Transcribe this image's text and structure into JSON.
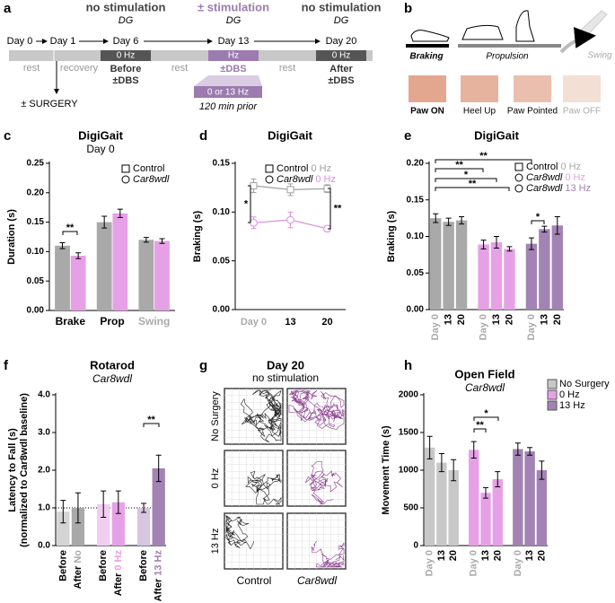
{
  "timeline": {
    "letter": "a",
    "headers": [
      {
        "title": "no stimulation",
        "sub": "DG"
      },
      {
        "title": "± stimulation",
        "sub": "DG"
      },
      {
        "title": "no stimulation",
        "sub": "DG"
      }
    ],
    "days": [
      "Day 0",
      "Day 1",
      "Day 6",
      "Day 13",
      "Day 20"
    ],
    "segments": [
      "rest",
      "recovery",
      "rest",
      "rest"
    ],
    "boxes": [
      "0 Hz",
      "Hz",
      "0 Hz"
    ],
    "box_labels": [
      [
        "Before",
        "±DBS"
      ],
      [
        "±DBS"
      ],
      [
        "After",
        "±DBS"
      ]
    ],
    "surgery": "± SURGERY",
    "prior_box": "0 or 13 Hz",
    "prior_note": "120 min prior"
  },
  "paw_phases": {
    "letter": "b",
    "phases": [
      "Braking",
      "Propulsion",
      "Swing"
    ],
    "stills": [
      "Paw ON",
      "Heel Up",
      "Paw Pointed",
      "Paw OFF"
    ]
  },
  "open_field": {
    "letter": "g",
    "title": "Day 20",
    "subtitle": "no stimulation",
    "rows": [
      "No Surgery",
      "0 Hz",
      "13 Hz"
    ],
    "columns": [
      "Control",
      "Car8wdl"
    ]
  },
  "chart_data": [
    {
      "type": "bar",
      "letter": "c",
      "title": "DigiGait",
      "subtitle": "Day 0",
      "ylabel": "Duration (s)",
      "categories": [
        "Brake",
        "Prop",
        "Swing"
      ],
      "category_colors": [
        "#000000",
        "#000000",
        "#aaaaaa"
      ],
      "series": [
        {
          "name": "Control",
          "marker": "square",
          "color": "#a9a9a9",
          "values": [
            0.11,
            0.15,
            0.12
          ],
          "errors": [
            0.005,
            0.01,
            0.004
          ]
        },
        {
          "name": "Car8wdl",
          "marker": "circle",
          "color": "#e6a1e6",
          "values": [
            0.093,
            0.165,
            0.118
          ],
          "errors": [
            0.005,
            0.007,
            0.004
          ]
        }
      ],
      "ylim": [
        0,
        0.25
      ],
      "yticks": [
        {
          "value": 0,
          "label": "0.00"
        },
        {
          "value": 0.05,
          "label": "0.05"
        },
        {
          "value": 0.1,
          "label": "0.10"
        },
        {
          "value": 0.15,
          "label": "0.15"
        },
        {
          "value": 0.2,
          "label": "0.20"
        },
        {
          "value": 0.25,
          "label": "0.25"
        }
      ],
      "legend": "upper right",
      "annotations": [
        "**"
      ]
    },
    {
      "type": "line",
      "letter": "d",
      "title": "DigiGait",
      "ylabel": "Braking (s)",
      "categories": [
        "Day 0",
        "13",
        "20"
      ],
      "category_colors": [
        "#aaaaaa",
        "#000000",
        "#000000"
      ],
      "series": [
        {
          "name": "Control",
          "condition": "0 Hz",
          "marker": "square",
          "color": "#a0a0a0",
          "values": [
            0.127,
            0.123,
            0.124
          ],
          "errors": [
            0.007,
            0.006,
            0.004
          ]
        },
        {
          "name": "Car8wdl",
          "condition": "0 Hz",
          "marker": "circle",
          "color": "#d98ee0",
          "values": [
            0.089,
            0.092,
            0.083
          ],
          "errors": [
            0.006,
            0.008,
            0.003
          ]
        }
      ],
      "ylim": [
        0,
        0.15
      ],
      "yticks": [
        {
          "value": 0,
          "label": "0.00"
        },
        {
          "value": 0.05,
          "label": "0.05"
        },
        {
          "value": 0.1,
          "label": "0.10"
        },
        {
          "value": 0.15,
          "label": "0.15"
        }
      ],
      "legend": "upper right",
      "annotations": [
        "*",
        "**"
      ]
    },
    {
      "type": "grouped_bar",
      "letter": "e",
      "title": "DigiGait",
      "ylabel": "Braking (s)",
      "categories": [
        "Day 0",
        "13",
        "20"
      ],
      "category_colors": [
        "#aaaaaa",
        "#000000",
        "#000000"
      ],
      "series": [
        {
          "name": "Control",
          "condition": "0 Hz",
          "marker": "square",
          "color": "#a9a9a9",
          "values": [
            0.125,
            0.12,
            0.122
          ],
          "errors": [
            0.006,
            0.005,
            0.005
          ]
        },
        {
          "name": "Car8wdl",
          "condition": "0 Hz",
          "marker": "circle",
          "color": "#e6a1e6",
          "values": [
            0.089,
            0.092,
            0.083
          ],
          "errors": [
            0.006,
            0.008,
            0.003
          ]
        },
        {
          "name": "Car8wdl",
          "condition": "13 Hz",
          "marker": "circle",
          "color": "#a283b4",
          "values": [
            0.09,
            0.11,
            0.115
          ],
          "errors": [
            0.008,
            0.004,
            0.012
          ]
        }
      ],
      "ylim": [
        0,
        0.2
      ],
      "yticks": [
        {
          "value": 0,
          "label": "0.00"
        },
        {
          "value": 0.05,
          "label": "0.05"
        },
        {
          "value": 0.1,
          "label": "0.10"
        },
        {
          "value": 0.15,
          "label": "0.15"
        },
        {
          "value": 0.2,
          "label": "0.20"
        }
      ],
      "legend": "upper right",
      "annotations": [
        "**",
        "**",
        "*",
        "**",
        "*"
      ]
    },
    {
      "type": "grouped_bar",
      "letter": "f",
      "title": "Rotarod",
      "subtitle": "Car8wdl",
      "ylabel": [
        "Latency to Fall (s)",
        "(normalized to Car8wdl baseline)"
      ],
      "categories": [
        "Before",
        "After"
      ],
      "category_colors": [
        "#000000",
        "#000000"
      ],
      "series_name_in_last_label": true,
      "series": [
        {
          "name": "No",
          "colors": [
            "#d4d4d4",
            "#a9a9a9"
          ],
          "color": "#a9a9a9",
          "values": [
            0.9,
            1.0
          ],
          "errors": [
            0.3,
            0.4
          ]
        },
        {
          "name": "0 Hz",
          "colors": [
            "#f2cdf2",
            "#e6a1e6"
          ],
          "color": "#e6a1e6",
          "values": [
            1.1,
            1.15
          ],
          "errors": [
            0.35,
            0.3
          ]
        },
        {
          "name": "13 Hz",
          "colors": [
            "#d6c6df",
            "#a283b4"
          ],
          "color": "#a283b4",
          "values": [
            1.0,
            2.05
          ],
          "errors": [
            0.12,
            0.35
          ]
        }
      ],
      "ylim": [
        0,
        4
      ],
      "yticks": [
        {
          "value": 0,
          "label": "0.0"
        },
        {
          "value": 1,
          "label": "1.0"
        },
        {
          "value": 2,
          "label": "2.0"
        },
        {
          "value": 3,
          "label": "3.0"
        },
        {
          "value": 4,
          "label": "4.0"
        }
      ],
      "reference_line": 1,
      "annotations": [
        "**"
      ]
    },
    {
      "type": "grouped_bar",
      "letter": "h",
      "title": "Open Field",
      "subtitle": "Car8wdl",
      "ylabel": "Movement Time (s)",
      "categories": [
        "Day 0",
        "13",
        "20"
      ],
      "category_colors": [
        "#aaaaaa",
        "#000000",
        "#000000"
      ],
      "series": [
        {
          "name": "No Surgery",
          "color": "#c8c8c8",
          "values": [
            1300,
            1100,
            1000
          ],
          "errors": [
            150,
            120,
            140
          ]
        },
        {
          "name": "0 Hz",
          "color": "#e6a1e6",
          "values": [
            1270,
            700,
            880
          ],
          "errors": [
            110,
            70,
            100
          ]
        },
        {
          "name": "13 Hz",
          "color": "#a283b4",
          "values": [
            1280,
            1250,
            1000
          ],
          "errors": [
            80,
            50,
            120
          ]
        }
      ],
      "ylim": [
        0,
        2000
      ],
      "yticks": [
        0,
        500,
        1000,
        1500,
        2000
      ],
      "legend": "upper right",
      "annotations": [
        "**",
        "*"
      ]
    }
  ]
}
